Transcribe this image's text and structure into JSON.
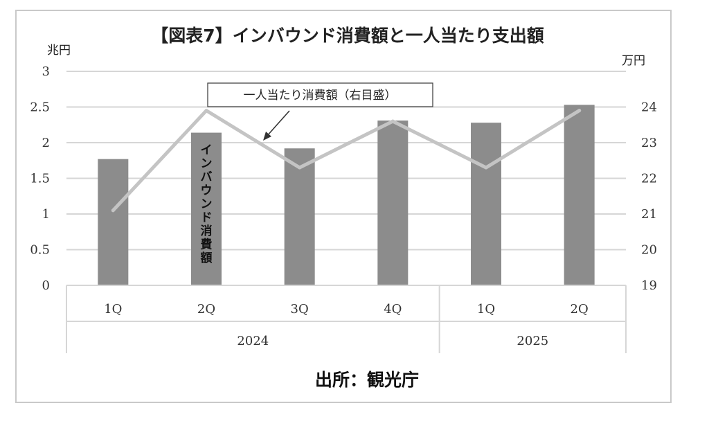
{
  "chart_data": {
    "type": "bar",
    "title": "【図表7】インバウンド消費額と一人当たり支出額",
    "categories": [
      "1Q",
      "2Q",
      "3Q",
      "4Q",
      "1Q",
      "2Q"
    ],
    "category_groups": [
      {
        "label": "2024",
        "count": 4
      },
      {
        "label": "2025",
        "count": 2
      }
    ],
    "series": [
      {
        "name": "インバウンド消費額",
        "type": "bar",
        "axis": "left",
        "values": [
          1.77,
          2.14,
          1.92,
          2.31,
          2.28,
          2.53
        ]
      },
      {
        "name": "一人当たり消費額（右目盛）",
        "type": "line",
        "axis": "right",
        "values": [
          21.1,
          23.9,
          22.3,
          23.6,
          22.3,
          23.9
        ]
      }
    ],
    "y_left": {
      "unit": "兆円",
      "ylim": [
        0,
        3
      ],
      "ticks": [
        "0",
        "0.5",
        "1",
        "1.5",
        "2",
        "2.5",
        "3"
      ]
    },
    "y_right": {
      "unit": "万円",
      "ylim": [
        19,
        25
      ],
      "ticks": [
        "19",
        "20",
        "21",
        "22",
        "23",
        "24",
        ""
      ]
    },
    "grid": true,
    "colors": {
      "bar": "#8c8c8c",
      "line": "#c4c4c4",
      "grid": "#d6d6d6"
    },
    "annotations": [
      {
        "text": "一人当たり消費額（右目盛）",
        "target_series": 1
      },
      {
        "text": "インバウンド消費額",
        "target_series": 0,
        "orientation": "vertical",
        "category_index": 1
      }
    ]
  },
  "source": "出所：観光庁"
}
